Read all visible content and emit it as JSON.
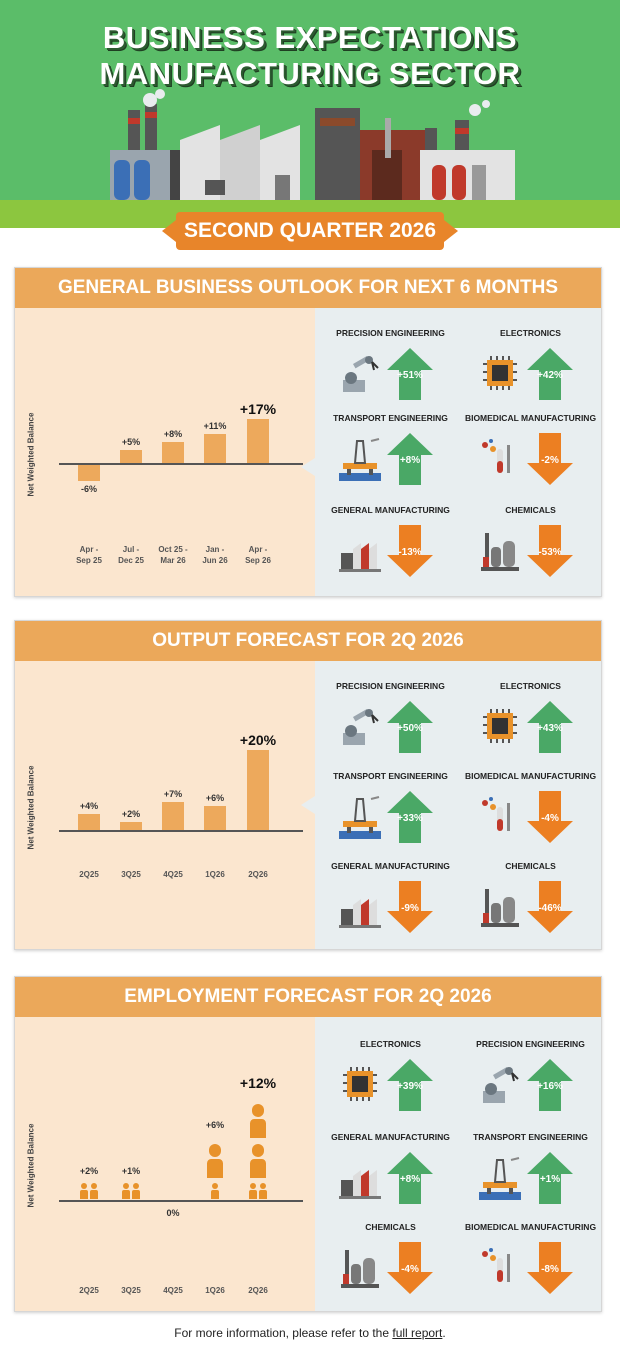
{
  "header": {
    "title_line1": "BUSINESS EXPECTATIONS",
    "title_line2": "MANUFACTURING SECTOR",
    "quarter": "SECOND QUARTER 2026"
  },
  "colors": {
    "up": "#4aa866",
    "down": "#ec7f22",
    "bar": "#eda95c",
    "panel_title": "#eba85a"
  },
  "outlook": {
    "title": "GENERAL BUSINESS OUTLOOK FOR NEXT 6 MONTHS",
    "ylabel": "Net Weighted Balance",
    "sectors": [
      {
        "name": "PRECISION ENGINEERING",
        "value": "+51%",
        "dir": "up",
        "icon": "robot-arm-icon"
      },
      {
        "name": "ELECTRONICS",
        "value": "+42%",
        "dir": "up",
        "icon": "microchip-icon"
      },
      {
        "name": "TRANSPORT ENGINEERING",
        "value": "+8%",
        "dir": "up",
        "icon": "oil-rig-icon"
      },
      {
        "name": "BIOMEDICAL MANUFACTURING",
        "value": "-2%",
        "dir": "down",
        "icon": "lab-equipment-icon"
      },
      {
        "name": "GENERAL MANUFACTURING",
        "value": "-13%",
        "dir": "down",
        "icon": "factory-icon"
      },
      {
        "name": "CHEMICALS",
        "value": "-53%",
        "dir": "down",
        "icon": "chemical-plant-icon"
      }
    ]
  },
  "output": {
    "title": "OUTPUT FORECAST FOR 2Q 2026",
    "ylabel": "Net Weighted Balance",
    "sectors": [
      {
        "name": "PRECISION ENGINEERING",
        "value": "+50%",
        "dir": "up",
        "icon": "robot-arm-icon"
      },
      {
        "name": "ELECTRONICS",
        "value": "+43%",
        "dir": "up",
        "icon": "microchip-icon"
      },
      {
        "name": "TRANSPORT ENGINEERING",
        "value": "+33%",
        "dir": "up",
        "icon": "oil-rig-icon"
      },
      {
        "name": "BIOMEDICAL MANUFACTURING",
        "value": "-4%",
        "dir": "down",
        "icon": "lab-equipment-icon"
      },
      {
        "name": "GENERAL MANUFACTURING",
        "value": "-9%",
        "dir": "down",
        "icon": "factory-icon"
      },
      {
        "name": "CHEMICALS",
        "value": "-46%",
        "dir": "down",
        "icon": "chemical-plant-icon"
      }
    ]
  },
  "employment": {
    "title": "EMPLOYMENT FORECAST FOR 2Q 2026",
    "ylabel": "Net Weighted Balance",
    "sectors": [
      {
        "name": "ELECTRONICS",
        "value": "+39%",
        "dir": "up",
        "icon": "microchip-icon"
      },
      {
        "name": "PRECISION ENGINEERING",
        "value": "+16%",
        "dir": "up",
        "icon": "robot-arm-icon"
      },
      {
        "name": "GENERAL MANUFACTURING",
        "value": "+8%",
        "dir": "up",
        "icon": "factory-icon"
      },
      {
        "name": "TRANSPORT ENGINEERING",
        "value": "+1%",
        "dir": "up",
        "icon": "oil-rig-icon"
      },
      {
        "name": "CHEMICALS",
        "value": "-4%",
        "dir": "down",
        "icon": "chemical-plant-icon"
      },
      {
        "name": "BIOMEDICAL MANUFACTURING",
        "value": "-8%",
        "dir": "down",
        "icon": "lab-equipment-icon"
      }
    ]
  },
  "chart_data": [
    {
      "type": "bar",
      "title": "GENERAL BUSINESS OUTLOOK FOR NEXT 6 MONTHS",
      "ylabel": "Net Weighted Balance",
      "categories": [
        [
          "Apr -",
          "Sep 25"
        ],
        [
          "Jul -",
          "Dec 25"
        ],
        [
          "Oct 25 -",
          "Mar 26"
        ],
        [
          "Jan -",
          "Jun 26"
        ],
        [
          "Apr -",
          "Sep 26"
        ]
      ],
      "values": [
        -6,
        5,
        8,
        11,
        17
      ],
      "labels": [
        "-6%",
        "+5%",
        "+8%",
        "+11%",
        "+17%"
      ]
    },
    {
      "type": "bar",
      "title": "OUTPUT FORECAST FOR 2Q 2026",
      "ylabel": "Net Weighted Balance",
      "categories": [
        [
          "2Q25"
        ],
        [
          "3Q25"
        ],
        [
          "4Q25"
        ],
        [
          "1Q26"
        ],
        [
          "2Q26"
        ]
      ],
      "values": [
        4,
        2,
        7,
        6,
        20
      ],
      "labels": [
        "+4%",
        "+2%",
        "+7%",
        "+6%",
        "+20%"
      ]
    },
    {
      "type": "bar",
      "title": "EMPLOYMENT FORECAST FOR 2Q 2026",
      "ylabel": "Net Weighted Balance",
      "categories": [
        [
          "2Q25"
        ],
        [
          "3Q25"
        ],
        [
          "4Q25"
        ],
        [
          "1Q26"
        ],
        [
          "2Q26"
        ]
      ],
      "values": [
        2,
        1,
        0,
        6,
        12
      ],
      "labels": [
        "+2%",
        "+1%",
        "0%",
        "+6%",
        "+12%"
      ]
    }
  ],
  "footer": {
    "text": "For more information, please refer to the ",
    "link": "full report",
    "end": "."
  }
}
